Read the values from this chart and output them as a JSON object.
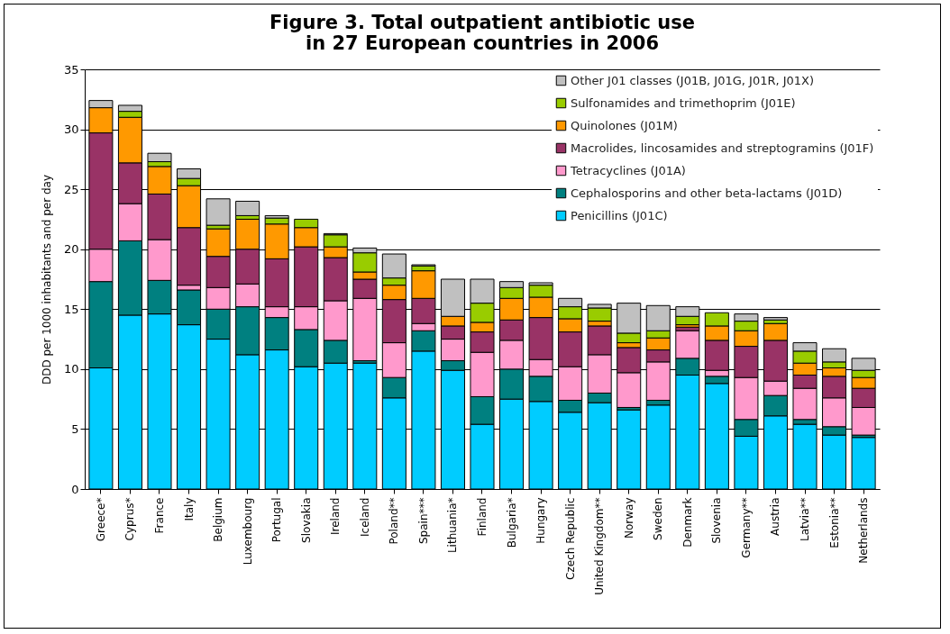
{
  "chart_data": {
    "type": "bar",
    "stacked": true,
    "title": "Figure 3. Total outpatient antibiotic use\nin 27 European countries in 2006",
    "ylabel": "DDD per 1000 inhabitants and per day",
    "categories": [
      "Greece*",
      "Cyprus*",
      "France",
      "Italy",
      "Belgium",
      "Luxembourg",
      "Portugal",
      "Slovakia",
      "Ireland",
      "Iceland",
      "Poland**",
      "Spain***",
      "Lithuania*",
      "Finland",
      "Bulgaria*",
      "Hungary",
      "Czech Republic",
      "United Kingdom**",
      "Norway",
      "Sweden",
      "Denmark",
      "Slovenia",
      "Germany**",
      "Austria",
      "Latvia**",
      "Estonia**",
      "Netherlands"
    ],
    "series": [
      {
        "name": "Penicillins (J01C)",
        "color": "#00ccff",
        "values": [
          10.1,
          14.5,
          14.6,
          13.7,
          12.5,
          11.2,
          11.6,
          10.2,
          10.5,
          10.5,
          7.6,
          11.5,
          9.9,
          5.4,
          7.5,
          7.3,
          6.4,
          7.2,
          6.6,
          7.0,
          9.5,
          8.8,
          4.4,
          6.1,
          5.4,
          4.5,
          4.3
        ]
      },
      {
        "name": "Cephalosporins and other beta-lactams (J01D)",
        "color": "#008080",
        "values": [
          7.2,
          6.2,
          2.8,
          2.9,
          2.5,
          4.0,
          2.7,
          3.1,
          1.9,
          0.2,
          1.7,
          1.7,
          0.8,
          2.3,
          2.5,
          2.1,
          1.0,
          0.8,
          0.2,
          0.4,
          1.4,
          0.6,
          1.4,
          1.7,
          0.4,
          0.7,
          0.2
        ]
      },
      {
        "name": "Tetracyclines (J01A)",
        "color": "#ff99cc",
        "values": [
          2.7,
          3.1,
          3.4,
          0.4,
          1.8,
          1.9,
          0.9,
          1.9,
          3.3,
          5.2,
          2.9,
          0.6,
          1.8,
          3.7,
          2.4,
          1.4,
          2.8,
          3.2,
          2.9,
          3.2,
          2.3,
          0.5,
          3.5,
          1.2,
          2.6,
          2.4,
          2.3
        ]
      },
      {
        "name": "Macrolides, lincosamides and streptogramins (J01F)",
        "color": "#993366",
        "values": [
          9.7,
          3.4,
          3.8,
          4.8,
          2.6,
          2.9,
          4.0,
          5.0,
          3.6,
          1.6,
          3.6,
          2.1,
          1.1,
          1.7,
          1.7,
          3.5,
          2.9,
          2.4,
          2.1,
          1.0,
          0.3,
          2.5,
          2.6,
          3.4,
          1.1,
          1.8,
          1.6
        ]
      },
      {
        "name": "Quinolones (J01M)",
        "color": "#ff9900",
        "values": [
          2.1,
          3.8,
          2.3,
          3.5,
          2.3,
          2.5,
          2.9,
          1.6,
          0.9,
          0.6,
          1.2,
          2.3,
          0.8,
          0.8,
          1.8,
          1.7,
          1.1,
          0.4,
          0.4,
          1.0,
          0.2,
          1.2,
          1.3,
          1.4,
          1.0,
          0.7,
          0.9
        ]
      },
      {
        "name": "Sulfonamides and trimethoprim (J01E)",
        "color": "#99cc00",
        "values": [
          null,
          0.5,
          0.4,
          0.6,
          0.3,
          0.3,
          0.5,
          0.7,
          1.0,
          1.6,
          0.6,
          0.4,
          null,
          1.6,
          0.9,
          1.0,
          1.0,
          1.1,
          0.8,
          0.6,
          0.7,
          1.1,
          0.8,
          0.3,
          1.0,
          0.5,
          0.6
        ]
      },
      {
        "name": "Other J01 classes (J01B, J01G, J01R, J01X)",
        "color": "#c0c0c0",
        "values": [
          0.6,
          0.5,
          0.7,
          0.8,
          2.2,
          1.2,
          0.2,
          null,
          0.1,
          0.4,
          2.0,
          0.1,
          3.1,
          2.0,
          0.5,
          0.2,
          0.7,
          0.3,
          2.5,
          2.1,
          0.8,
          null,
          0.6,
          0.2,
          0.7,
          1.1,
          1.0
        ]
      }
    ],
    "ylim": [
      0,
      35
    ],
    "yticks": [
      0,
      5,
      10,
      15,
      20,
      25,
      30,
      35
    ],
    "grid": "y",
    "legend": "top right"
  }
}
